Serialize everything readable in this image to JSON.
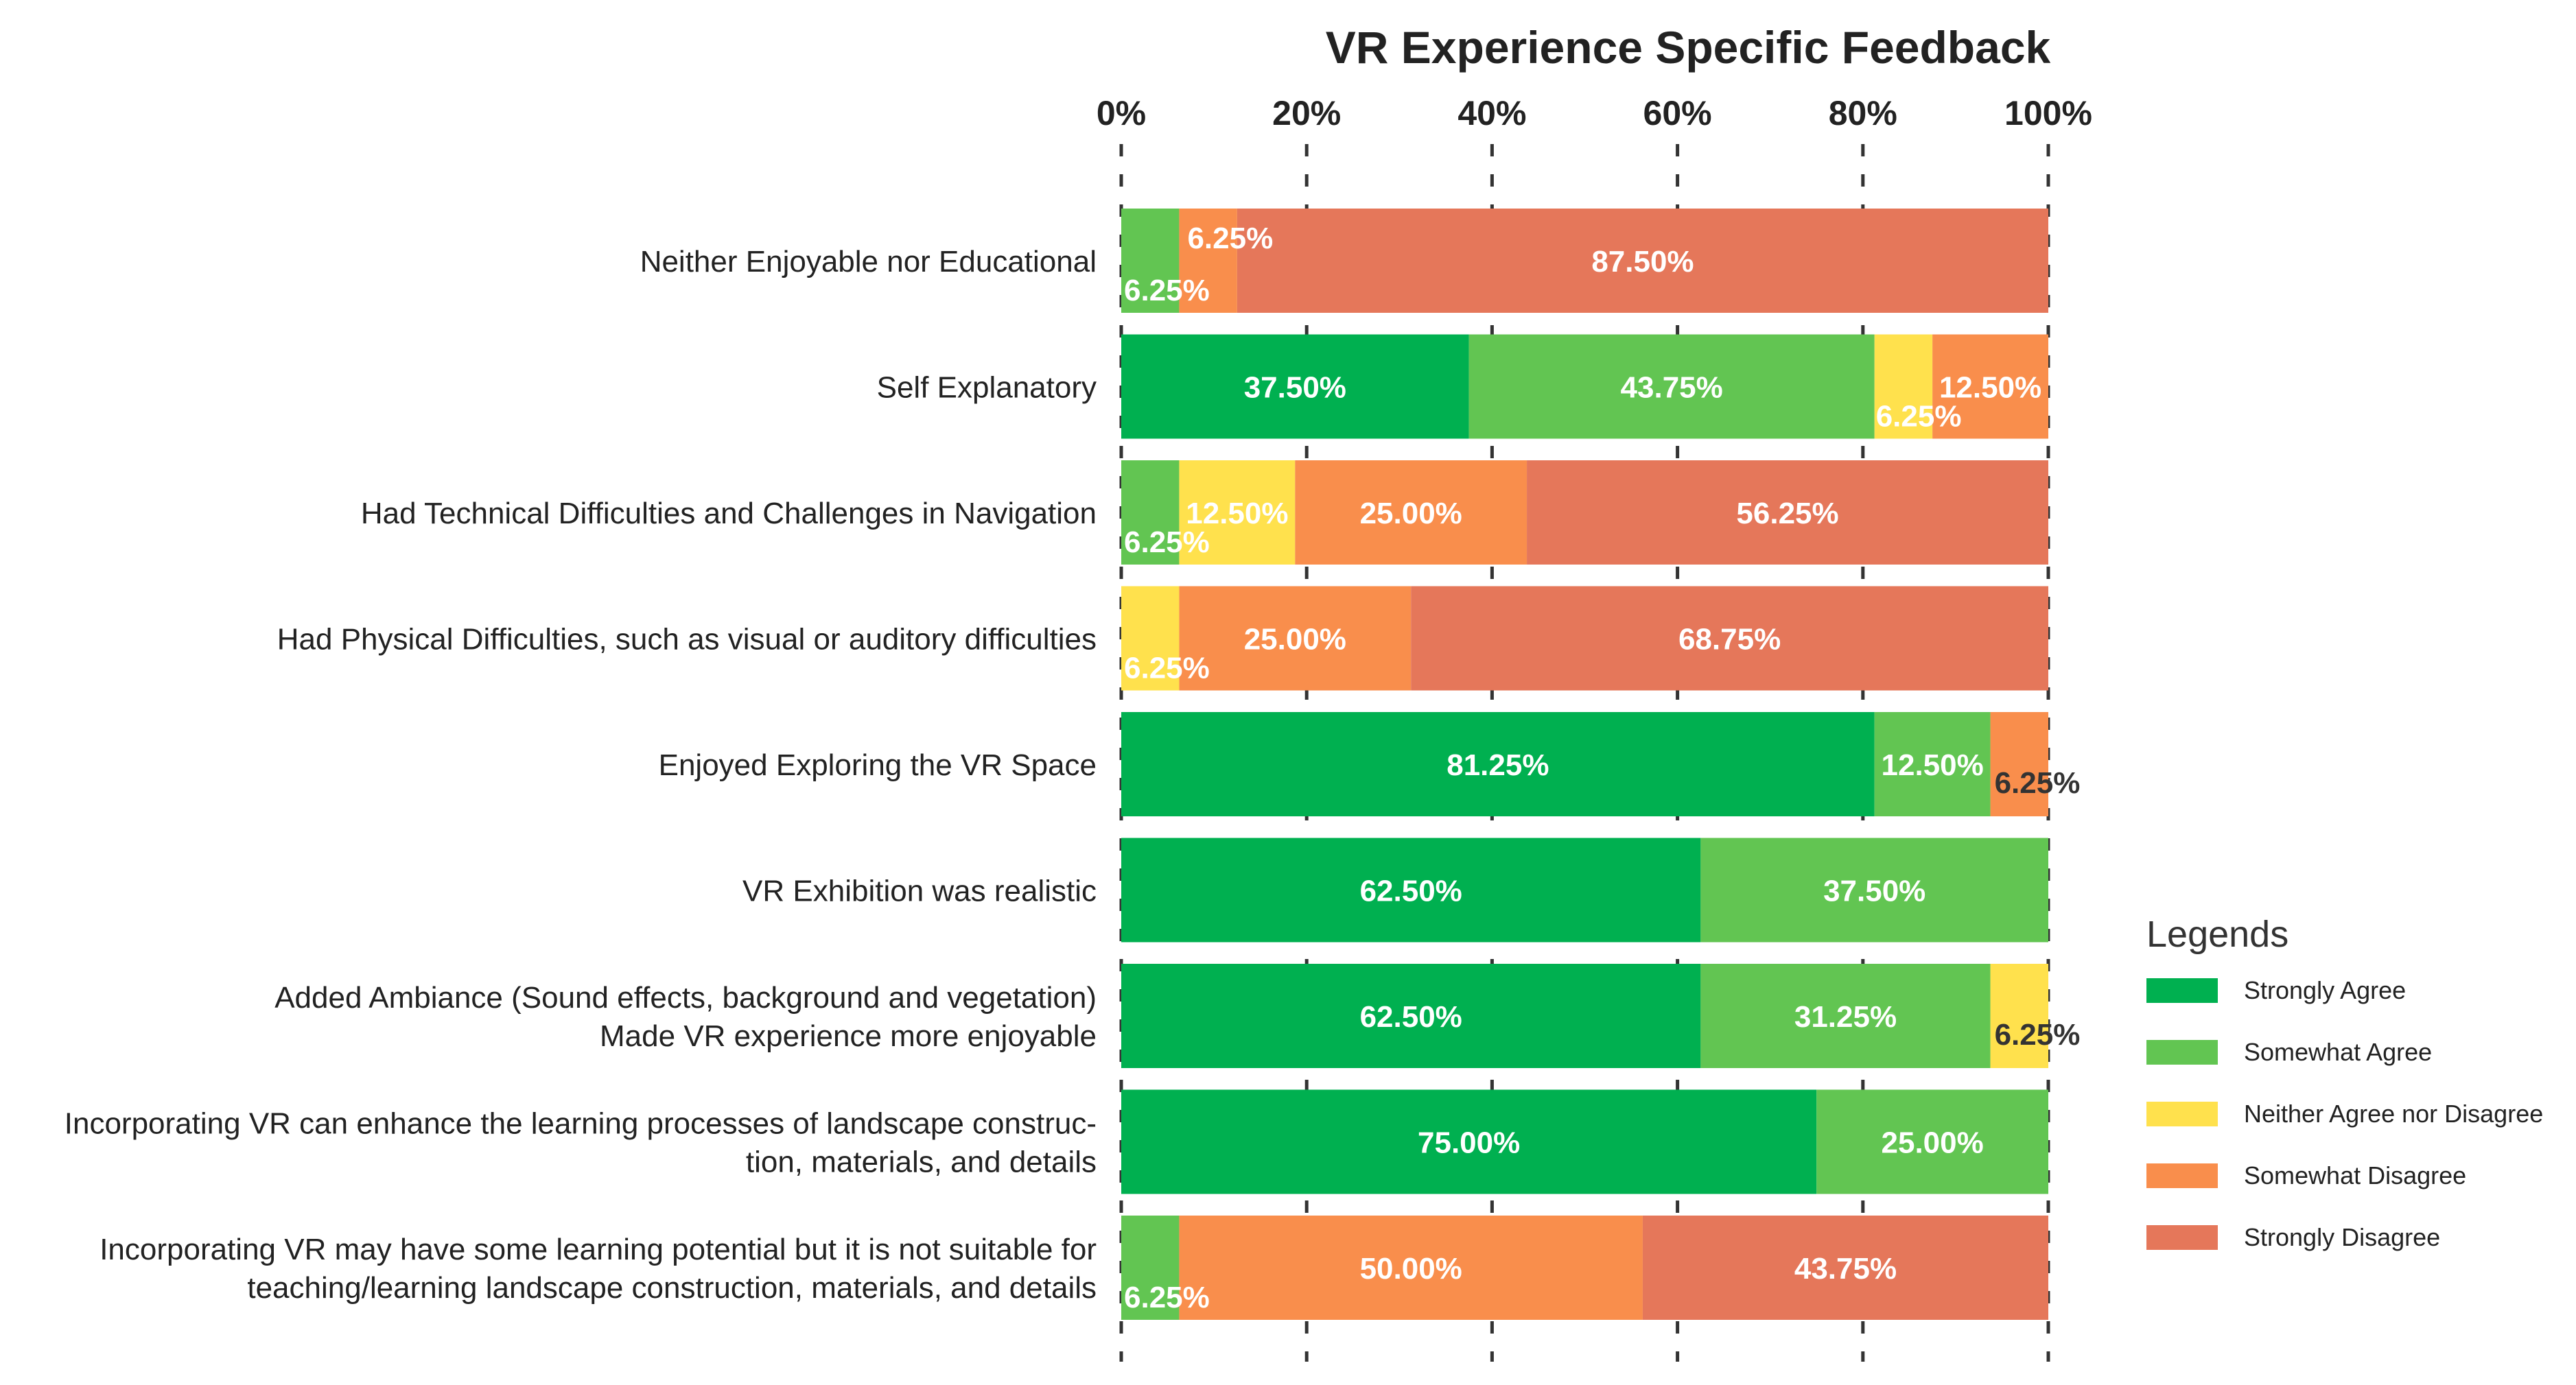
{
  "chart_data": {
    "type": "bar",
    "orientation": "horizontal",
    "stacked": true,
    "title": "VR Experience Specific Feedback",
    "xlabel": "",
    "ylabel": "",
    "xlim": [
      0,
      100
    ],
    "x_tick_labels": [
      "0%",
      "20%",
      "40%",
      "60%",
      "80%",
      "100%"
    ],
    "grid": "dashed vertical lines",
    "legend_title": "Legends",
    "legend_position": "right",
    "categories": [
      [
        "Neither Enjoyable nor Educational"
      ],
      [
        "Self Explanatory"
      ],
      [
        "Had Technical Difficulties and Challenges in Navigation"
      ],
      [
        "Had Physical Difficulties, such as visual or auditory difficulties"
      ],
      [
        "Enjoyed Exploring the VR Space"
      ],
      [
        "VR Exhibition was realistic"
      ],
      [
        "Added Ambiance (Sound effects, background and vegetation)",
        "Made VR experience more enjoyable"
      ],
      [
        "Incorporating VR can enhance the learning processes of landscape construc-",
        "tion, materials, and details"
      ],
      [
        "Incorporating VR may have some learning potential but it is not suitable for",
        "teaching/learning landscape construction, materials, and details"
      ]
    ],
    "series": [
      {
        "name": "Strongly Agree",
        "color": "#00b050",
        "values": [
          0,
          37.5,
          0,
          0,
          81.25,
          62.5,
          62.5,
          75,
          0
        ]
      },
      {
        "name": "Somewhat Agree",
        "color": "#62c552",
        "values": [
          6.25,
          43.75,
          6.25,
          0,
          12.5,
          37.5,
          31.25,
          25,
          6.25
        ]
      },
      {
        "name": "Neither Agree nor Disagree",
        "color": "#ffe14d",
        "values": [
          0,
          6.25,
          12.5,
          6.25,
          0,
          0,
          6.25,
          0,
          0
        ]
      },
      {
        "name": "Somewhat Disagree",
        "color": "#f98e4c",
        "values": [
          6.25,
          12.5,
          25,
          25,
          6.25,
          0,
          0,
          0,
          50
        ]
      },
      {
        "name": "Strongly Disagree",
        "color": "#e5775a",
        "values": [
          87.5,
          0,
          56.25,
          68.75,
          0,
          0,
          0,
          0,
          43.75
        ]
      }
    ]
  }
}
